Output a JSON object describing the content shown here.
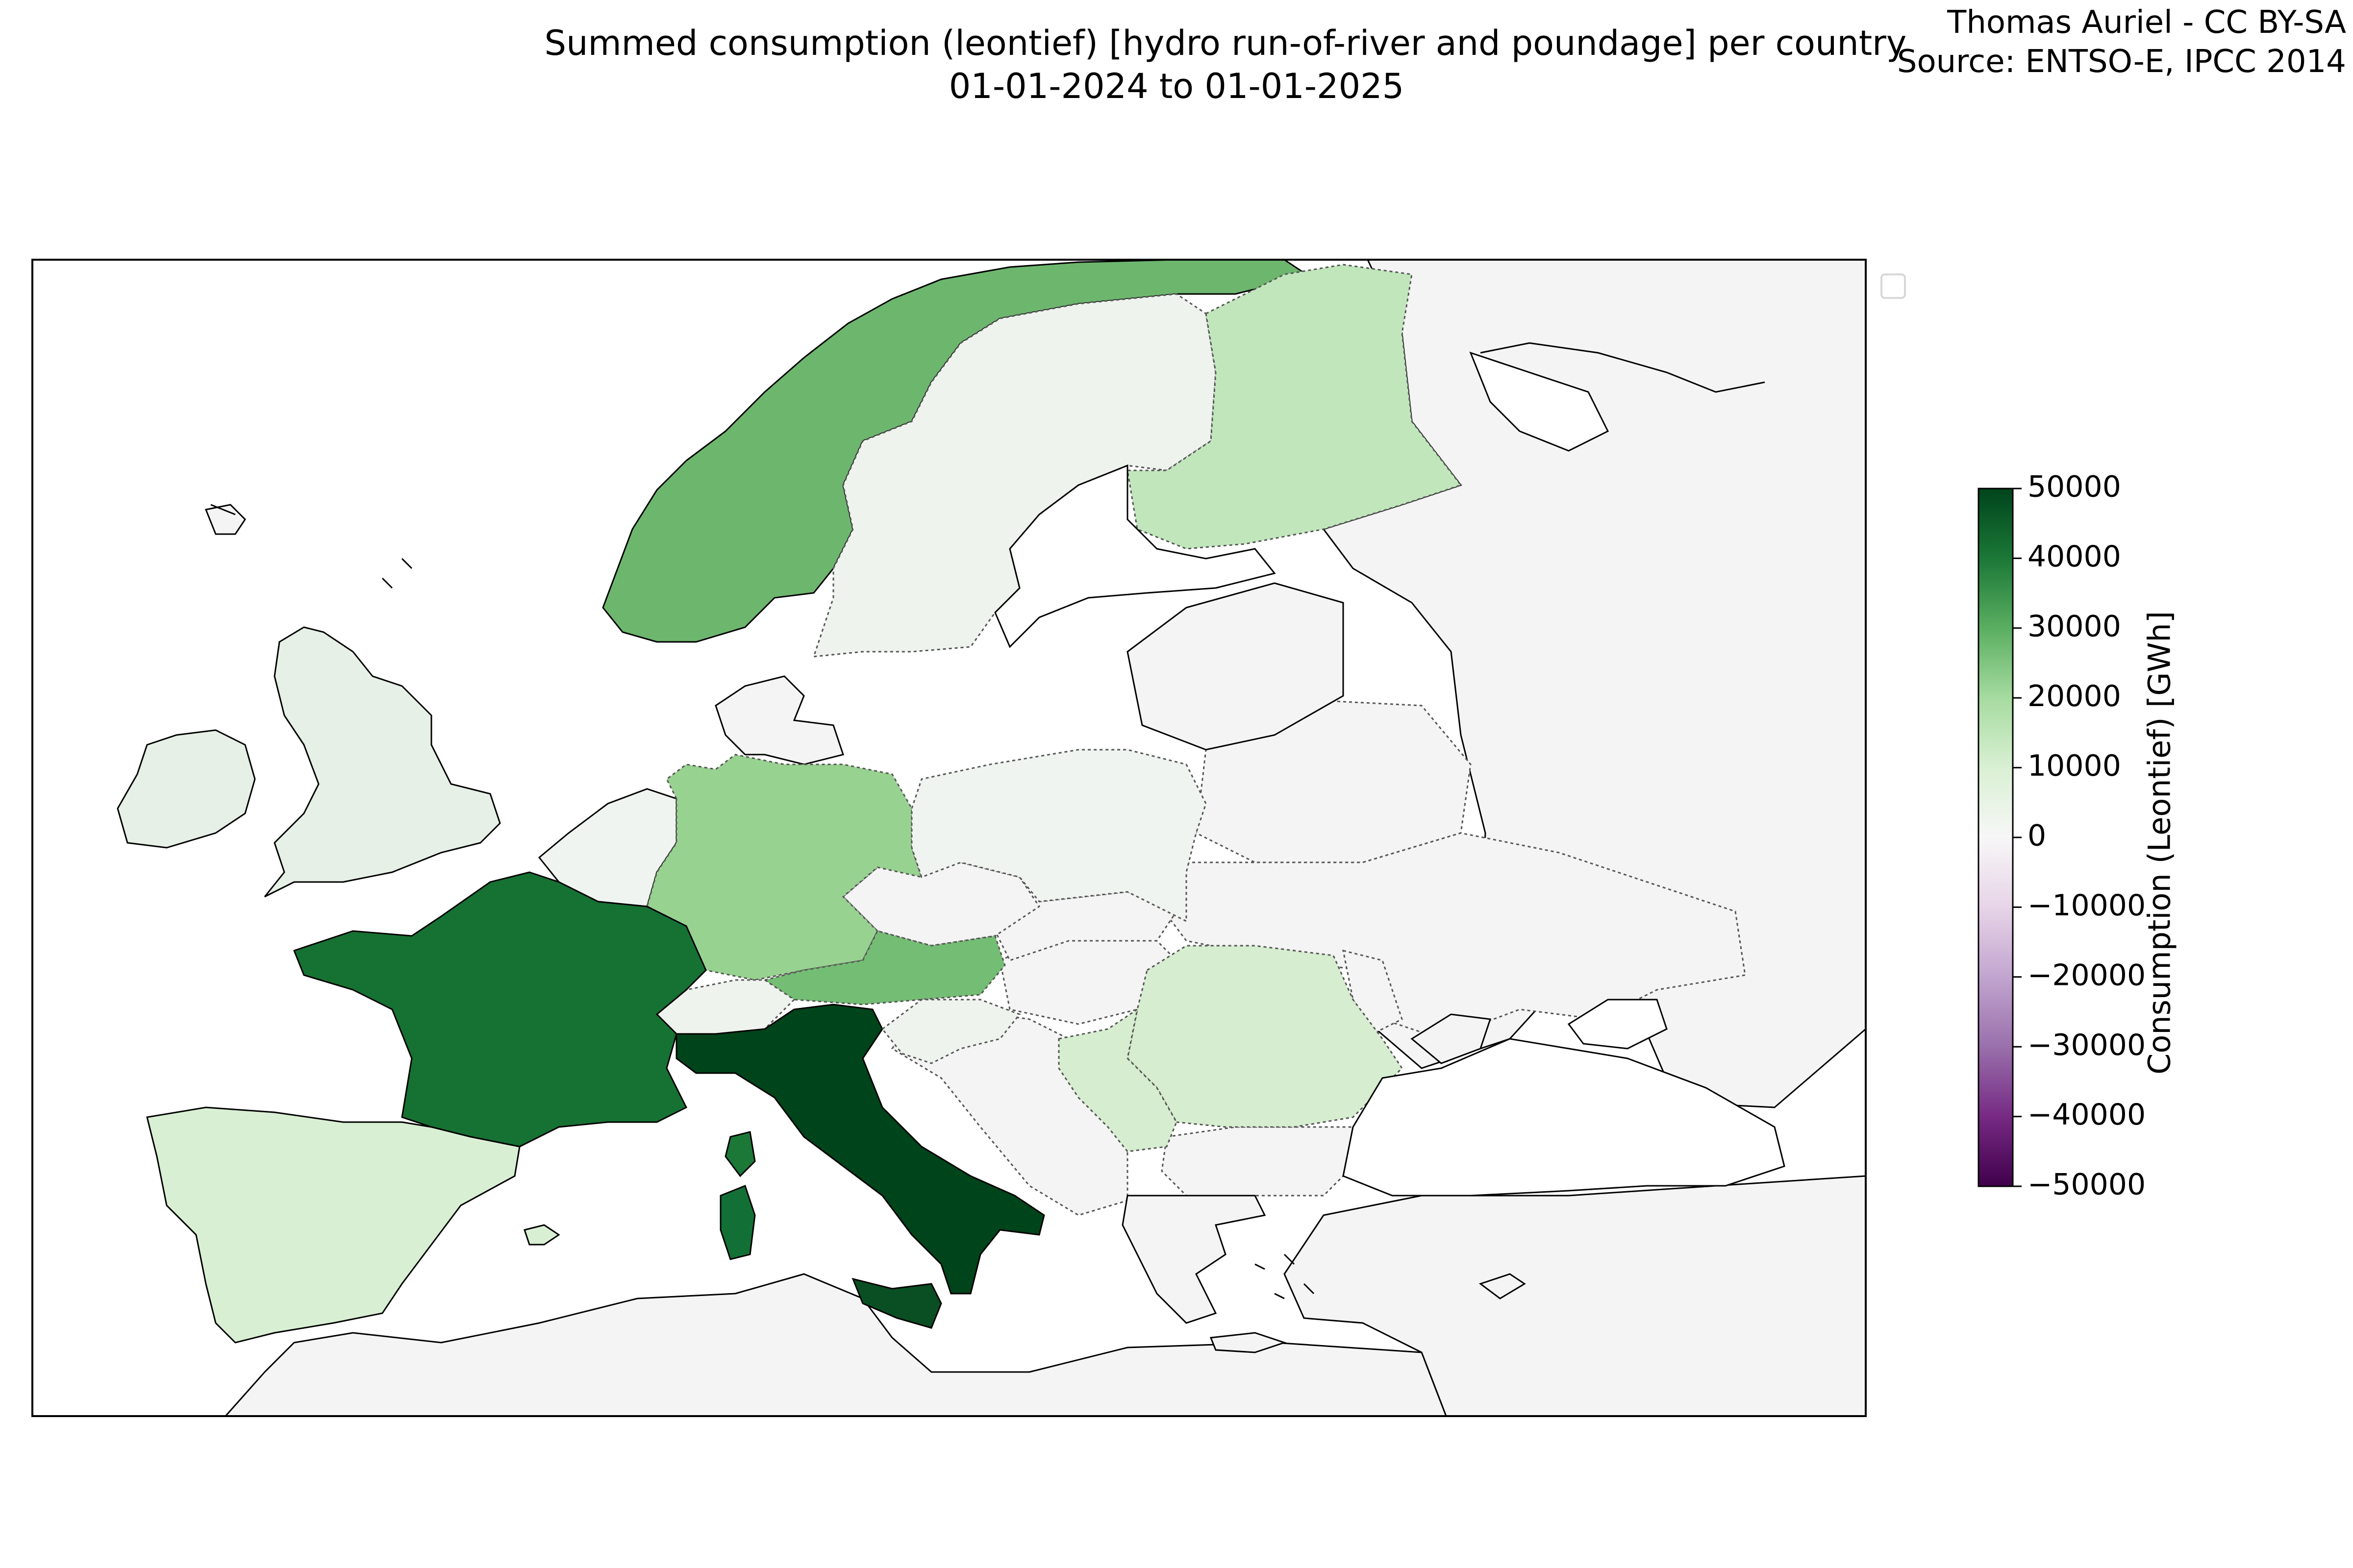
{
  "title": {
    "line1": "Summed consumption (leontief) [hydro run-of-river and poundage] per country",
    "line2": "01-01-2024 to 01-01-2025"
  },
  "credits": {
    "author": "Thomas Auriel - CC BY-SA",
    "source": "Source: ENTSO-E, IPCC 2014"
  },
  "colorbar": {
    "label": "Consumption (Leontief) [GWh]",
    "min": -50000,
    "max": 50000,
    "ticks": [
      "50000",
      "40000",
      "30000",
      "20000",
      "10000",
      "0",
      "−10000",
      "−20000",
      "−30000",
      "−40000",
      "−50000"
    ],
    "tick_values": [
      50000,
      40000,
      30000,
      20000,
      10000,
      0,
      -10000,
      -20000,
      -30000,
      -40000,
      -50000
    ],
    "colormap": "PRGn",
    "stops": [
      "#40004b",
      "#762a83",
      "#9970ab",
      "#c2a5cf",
      "#e7d4e8",
      "#f7f7f7",
      "#d9f0d3",
      "#a6dba0",
      "#5aae61",
      "#1b7837",
      "#00441b"
    ]
  },
  "colors": {
    "ocean": "#ffffff",
    "no_data": "#f4f4f4",
    "coast": "#000000",
    "border": "#555555"
  },
  "legend": {
    "empty": true
  }
}
